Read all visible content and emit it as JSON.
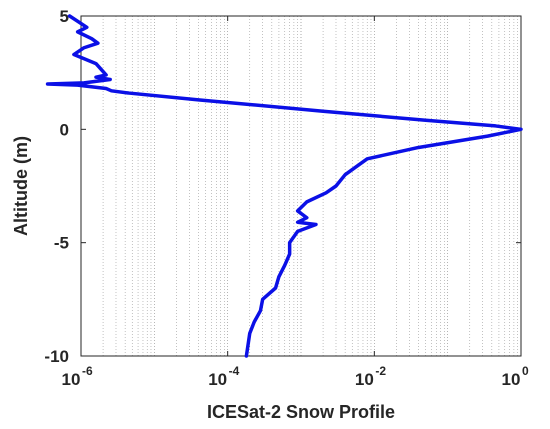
{
  "chart_data": {
    "type": "line",
    "title": "",
    "xlabel": "ICESat-2 Snow Profile",
    "ylabel": "Altitude (m)",
    "xscale": "log",
    "xlim": [
      1e-06,
      1
    ],
    "ylim": [
      -10,
      5
    ],
    "grid": "x-minor-dotted",
    "legend": "none",
    "line_color": "#0b10e6",
    "x_ticks": [
      {
        "base": "10",
        "exp": "-6"
      },
      {
        "base": "10",
        "exp": "-4"
      },
      {
        "base": "10",
        "exp": "-2"
      },
      {
        "base": "10",
        "exp": "0"
      }
    ],
    "y_ticks": [
      "5",
      "0",
      "-5",
      "-10"
    ],
    "y_tick_values": [
      5,
      0,
      -5,
      -10
    ],
    "series": [
      {
        "name": "",
        "x": [
          7e-07,
          1.2e-06,
          9e-07,
          1.4e-06,
          1.7e-06,
          1.1e-06,
          8e-07,
          1.6e-06,
          2.2e-06,
          1.6e-06,
          2.5e-06,
          1.1e-06,
          3.5e-07,
          9e-07,
          2.2e-06,
          2.6e-06,
          4.5e-06,
          4e-05,
          0.002,
          0.05,
          0.45,
          1.0,
          0.35,
          0.04,
          0.008,
          0.004,
          0.003,
          0.0022,
          0.0012,
          0.0009,
          0.0012,
          0.0009,
          0.0016,
          0.0009,
          0.0007,
          0.0007,
          0.0006,
          0.0005,
          0.00045,
          0.0003,
          0.00028,
          0.00023,
          0.0002,
          0.00018
        ],
        "y": [
          5.0,
          4.5,
          4.3,
          4.0,
          3.8,
          3.6,
          3.3,
          2.9,
          2.4,
          2.3,
          2.2,
          2.05,
          2.0,
          1.95,
          1.8,
          1.7,
          1.6,
          1.3,
          0.8,
          0.4,
          0.15,
          0.0,
          -0.3,
          -0.8,
          -1.3,
          -2.0,
          -2.5,
          -2.8,
          -3.2,
          -3.6,
          -3.9,
          -4.1,
          -4.2,
          -4.5,
          -5.0,
          -5.5,
          -6.0,
          -6.5,
          -7.0,
          -7.5,
          -8.0,
          -8.5,
          -9.0,
          -10.0
        ]
      }
    ]
  }
}
